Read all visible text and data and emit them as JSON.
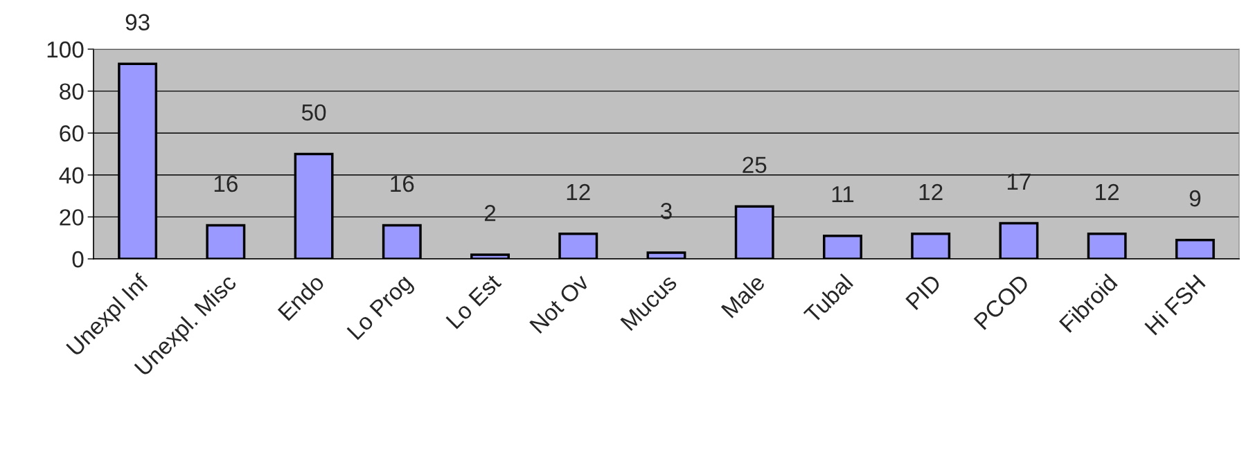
{
  "chart_data": {
    "type": "bar",
    "categories": [
      "Unexpl Inf",
      "Unexpl. Misc",
      "Endo",
      "Lo Prog",
      "Lo Est",
      "Not Ov",
      "Mucus",
      "Male",
      "Tubal",
      "PID",
      "PCOD",
      "Fibroid",
      "Hi FSH"
    ],
    "values": [
      93,
      16,
      50,
      16,
      2,
      12,
      3,
      25,
      11,
      12,
      17,
      12,
      9
    ],
    "color": "#9999ff",
    "ylim": [
      0,
      100
    ],
    "yticks": [
      0,
      20,
      40,
      60,
      80,
      100
    ],
    "grid": "y",
    "data_labels": true
  }
}
